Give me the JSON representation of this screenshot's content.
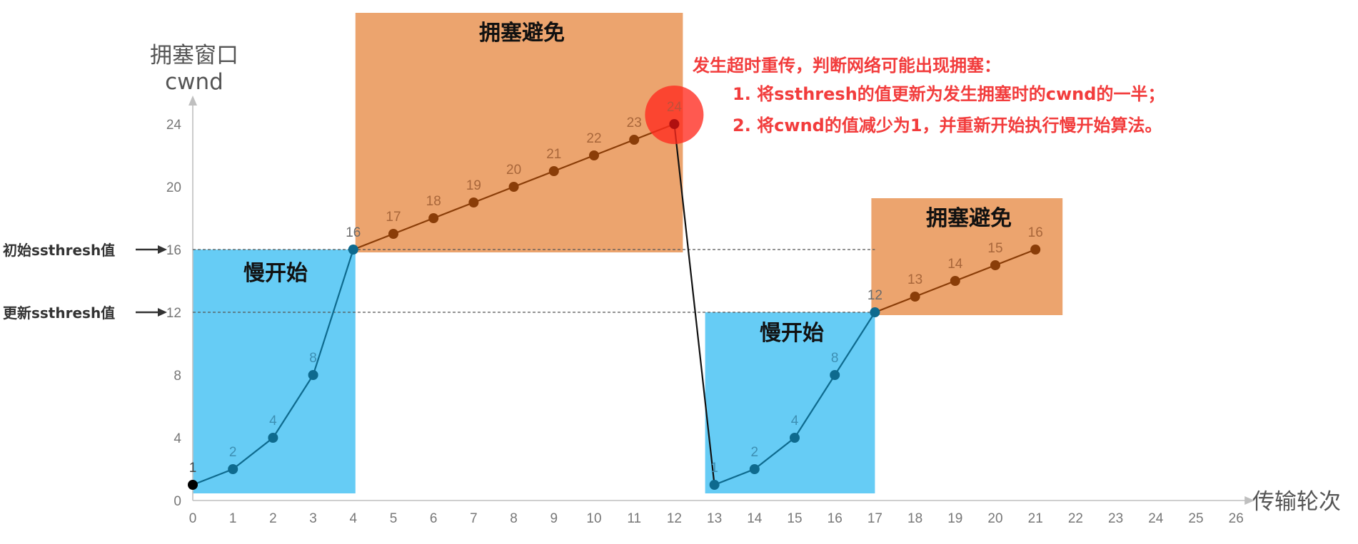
{
  "chart_data": {
    "type": "line",
    "ylabel": [
      "拥塞窗口",
      "cwnd"
    ],
    "xlabel": "传输轮次",
    "xlim": [
      0,
      26
    ],
    "ylim": [
      0,
      24
    ],
    "xticks": [
      0,
      1,
      2,
      3,
      4,
      5,
      6,
      7,
      8,
      9,
      10,
      11,
      12,
      13,
      14,
      15,
      16,
      17,
      18,
      19,
      20,
      21,
      22,
      23,
      24,
      25,
      26
    ],
    "yticks": [
      0,
      4,
      8,
      12,
      16,
      20,
      24
    ],
    "series": [
      {
        "x": [
          0,
          1,
          2,
          3,
          4,
          5,
          6,
          7,
          8,
          9,
          10,
          11,
          12,
          13,
          14,
          15,
          16,
          17,
          18,
          19,
          20,
          21
        ],
        "y": [
          1,
          2,
          4,
          8,
          16,
          17,
          18,
          19,
          20,
          21,
          22,
          23,
          24,
          1,
          2,
          4,
          8,
          12,
          13,
          14,
          15,
          16
        ]
      }
    ],
    "regions": [
      {
        "label": "慢开始",
        "x": [
          0,
          4
        ],
        "y": [
          1,
          16
        ],
        "color": "#66ccf5"
      },
      {
        "label": "拥塞避免",
        "x": [
          4,
          12
        ],
        "y": [
          16,
          24
        ],
        "color": "#eca46e"
      },
      {
        "label": "慢开始",
        "x": [
          13,
          17
        ],
        "y": [
          1,
          12
        ],
        "color": "#66ccf5"
      },
      {
        "label": "拥塞避免",
        "x": [
          17,
          21
        ],
        "y": [
          12,
          16
        ],
        "color": "#eca46e"
      }
    ],
    "threshold_lines": [
      {
        "label": "初始ssthresh值",
        "y": 16
      },
      {
        "label": "更新ssthresh值",
        "y": 12
      }
    ],
    "annotation": {
      "at": {
        "x": 12,
        "y": 24
      },
      "lines": [
        "发生超时重传，判断网络可能出现拥塞：",
        "1. 将ssthresh的值更新为发生拥塞时的cwnd的一半；",
        "2. 将cwnd的值减少为1，并重新开始执行慢开始算法。"
      ],
      "color": "#f23c3c"
    },
    "grid": false
  }
}
